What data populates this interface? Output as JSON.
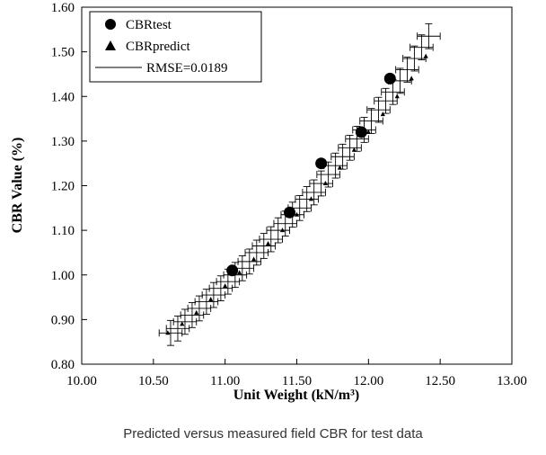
{
  "chart_data": {
    "type": "scatter",
    "xlabel": "Unit Weight (kN/m³)",
    "ylabel": "CBR Value (%)",
    "xlim": [
      10.0,
      13.0
    ],
    "ylim": [
      0.8,
      1.6
    ],
    "x_ticks": [
      "10.00",
      "10.50",
      "11.00",
      "11.50",
      "12.00",
      "12.50",
      "13.00"
    ],
    "y_ticks": [
      "0.80",
      "0.90",
      "1.00",
      "1.10",
      "1.20",
      "1.30",
      "1.40",
      "1.50",
      "1.60"
    ],
    "grid": false,
    "legend_position": "top-left",
    "series": [
      {
        "name": "CBRtest",
        "marker": "circle",
        "x": [
          11.05,
          11.45,
          11.67,
          11.95,
          12.15
        ],
        "y": [
          1.01,
          1.14,
          1.25,
          1.32,
          1.44
        ]
      },
      {
        "name": "CBRpredict",
        "marker": "triangle",
        "x": [
          10.6,
          10.7,
          10.8,
          10.9,
          11.0,
          11.1,
          11.2,
          11.3,
          11.4,
          11.5,
          11.6,
          11.7,
          11.8,
          11.9,
          12.0,
          12.1,
          12.2,
          12.3,
          12.4
        ],
        "y": [
          0.87,
          0.89,
          0.915,
          0.945,
          0.975,
          1.005,
          1.035,
          1.07,
          1.1,
          1.135,
          1.17,
          1.205,
          1.24,
          1.28,
          1.32,
          1.36,
          1.4,
          1.44,
          1.49
        ]
      },
      {
        "name": "RMSE=0.0189",
        "marker": "errorbar",
        "x": [
          10.62,
          10.67,
          10.72,
          10.77,
          10.82,
          10.87,
          10.92,
          10.97,
          11.02,
          11.07,
          11.12,
          11.17,
          11.22,
          11.27,
          11.32,
          11.37,
          11.42,
          11.47,
          11.52,
          11.57,
          11.62,
          11.67,
          11.72,
          11.77,
          11.82,
          11.87,
          11.92,
          11.97,
          12.02,
          12.07,
          12.12,
          12.17,
          12.22,
          12.27,
          12.32,
          12.37,
          12.42
        ],
        "y": [
          0.87,
          0.88,
          0.895,
          0.91,
          0.925,
          0.94,
          0.955,
          0.97,
          0.985,
          1.0,
          1.015,
          1.03,
          1.05,
          1.065,
          1.08,
          1.1,
          1.115,
          1.135,
          1.15,
          1.17,
          1.185,
          1.205,
          1.225,
          1.245,
          1.265,
          1.285,
          1.305,
          1.325,
          1.345,
          1.37,
          1.39,
          1.41,
          1.435,
          1.46,
          1.485,
          1.51,
          1.535
        ]
      }
    ]
  },
  "caption": "Predicted versus measured field CBR for test data"
}
